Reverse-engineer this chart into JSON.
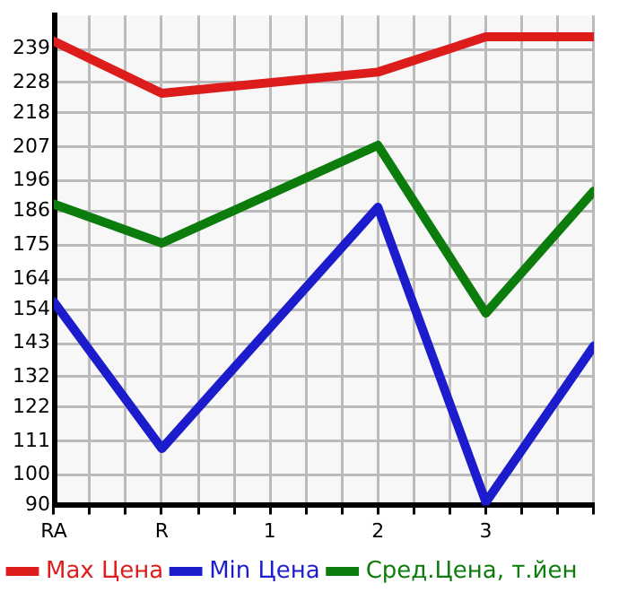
{
  "chart_data": {
    "type": "line",
    "categories": [
      "RA",
      "R",
      "1",
      "2",
      "3",
      null
    ],
    "series": [
      {
        "name": "Max Цена",
        "color": "#dd1c1c",
        "values": [
          241.6,
          224.6,
          null,
          231.5,
          243,
          243
        ]
      },
      {
        "name": "Min Цена",
        "color": "#1c1ccc",
        "values": [
          156.5,
          108.6,
          null,
          187.4,
          91.1,
          142.1
        ]
      },
      {
        "name": "Сред.Цена, т.йен",
        "color": "#0c7c0c",
        "values": [
          188.4,
          175.7,
          null,
          207.6,
          152.8,
          192.7
        ]
      }
    ],
    "ylim": [
      90,
      250
    ],
    "yticks": [
      90,
      100,
      111,
      122,
      132,
      143,
      154,
      164,
      175,
      186,
      196,
      207,
      218,
      228,
      239
    ],
    "grid": true,
    "legend": "bottom",
    "marker": "none",
    "line_style": "solid"
  }
}
